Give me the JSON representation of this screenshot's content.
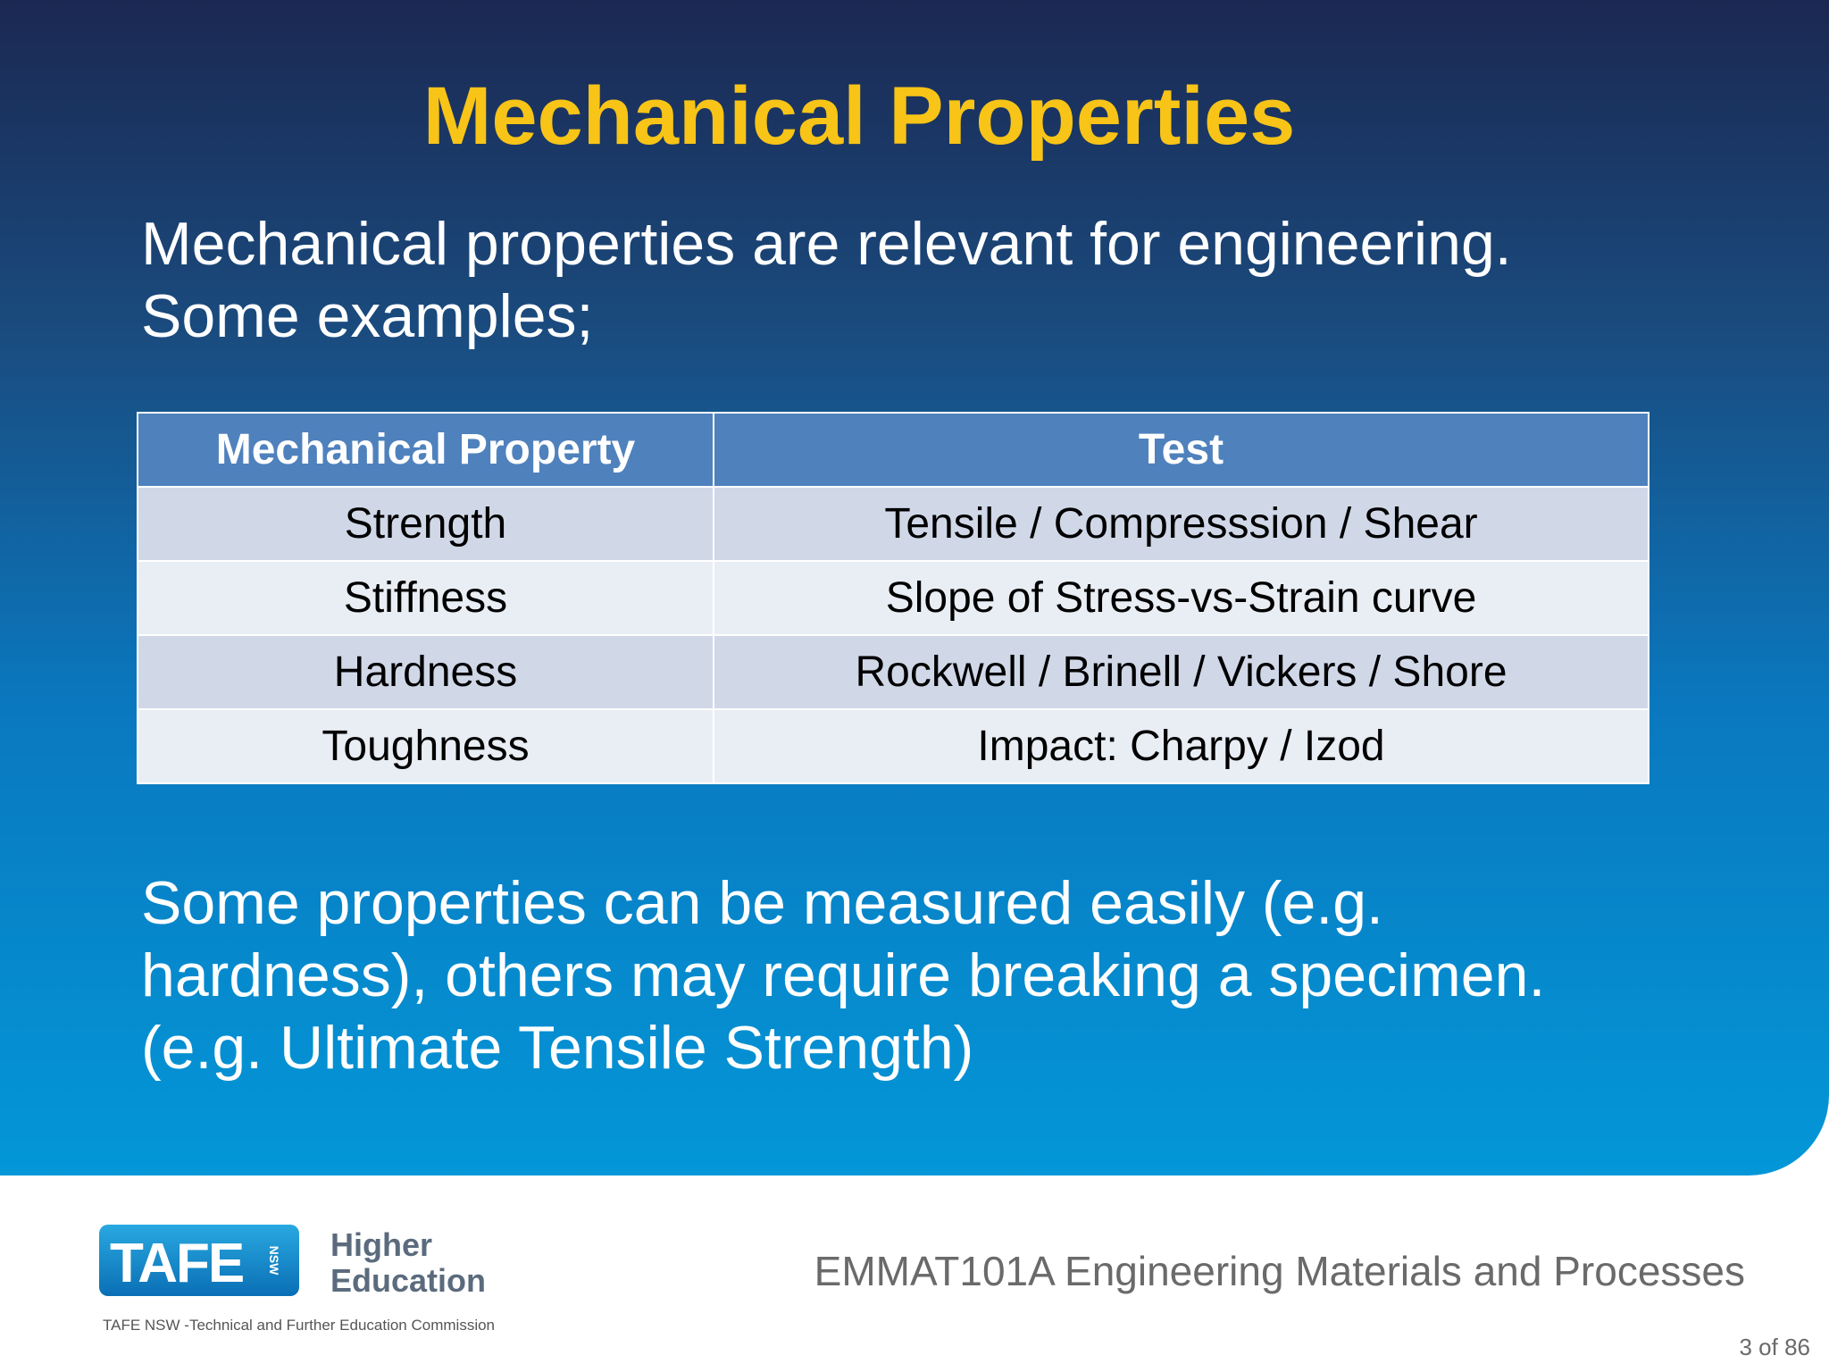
{
  "slide": {
    "title": "Mechanical Properties",
    "intro": [
      "Mechanical properties are relevant for engineering.",
      "Some examples;"
    ],
    "table": {
      "header": [
        "Mechanical Property",
        "Test"
      ],
      "rows": [
        [
          "Strength",
          "Tensile / Compresssion / Shear"
        ],
        [
          "Stiffness",
          "Slope of Stress-vs-Strain curve"
        ],
        [
          "Hardness",
          "Rockwell / Brinell / Vickers / Shore"
        ],
        [
          "Toughness",
          "Impact: Charpy / Izod"
        ]
      ]
    },
    "outro": [
      "Some properties can be measured easily (e.g.",
      "hardness), others may require breaking a specimen.",
      "(e.g. Ultimate Tensile Strength)"
    ]
  },
  "footer": {
    "logo": {
      "mark": "TAFE",
      "state": "NSW",
      "line1": "Higher",
      "line2": "Education"
    },
    "organisation": "TAFE NSW -Technical and Further Education Commission",
    "course": "EMMAT101A Engineering Materials and Processes",
    "page": "3 of 86"
  }
}
